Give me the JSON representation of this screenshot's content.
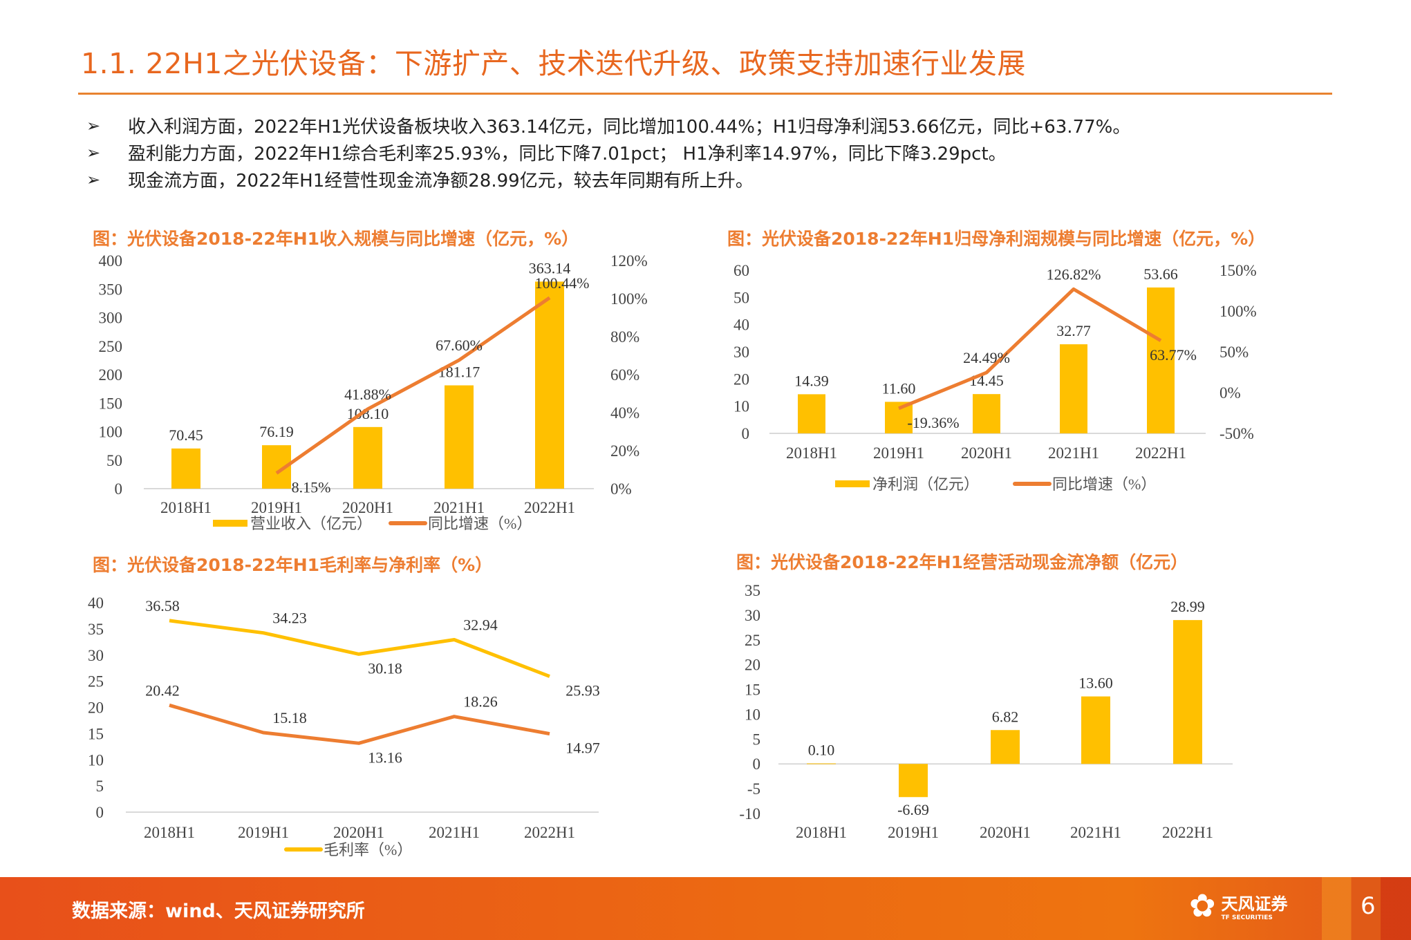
{
  "header": {
    "title": "1.1. 22H1之光伏设备：下游扩产、技术迭代升级、政策支持加速行业发展"
  },
  "bullets": {
    "marker": "➢",
    "items": [
      "收入利润方面，2022年H1光伏设备板块收入363.14亿元，同比增加100.44%；H1归母净利润53.66亿元，同比+63.77%。",
      "盈利能力方面，2022年H1综合毛利率25.93%，同比下降7.01pct； H1净利率14.97%，同比下降3.29pct。",
      "现金流方面，2022年H1经营性现金流净额28.99亿元，较去年同期有所上升。"
    ]
  },
  "colors": {
    "bar": "#FFC000",
    "line_orange": "#ED7D31",
    "line_yellow": "#FFC000",
    "title_accent": "#E8671F"
  },
  "chart_data": [
    {
      "type": "bar+line",
      "title": "图：光伏设备2018-22年H1收入规模与同比增速（亿元，%）",
      "categories": [
        "2018H1",
        "2019H1",
        "2020H1",
        "2021H1",
        "2022H1"
      ],
      "y_left": {
        "ylim": [
          0,
          400
        ],
        "ticks": [
          "0",
          "50",
          "100",
          "150",
          "200",
          "250",
          "300",
          "350",
          "400"
        ]
      },
      "y_right": {
        "ylim": [
          0,
          120
        ],
        "ticks": [
          "0%",
          "20%",
          "40%",
          "60%",
          "80%",
          "100%",
          "120%"
        ]
      },
      "series": [
        {
          "name": "营业收入（亿元）",
          "kind": "bar",
          "axis": "left",
          "values": [
            70.45,
            76.19,
            108.1,
            181.17,
            363.14
          ],
          "labels": [
            "70.45",
            "76.19",
            "108.10",
            "181.17",
            "363.14"
          ]
        },
        {
          "name": "同比增速（%）",
          "kind": "line",
          "axis": "right",
          "values": [
            null,
            8.15,
            41.88,
            67.6,
            100.44
          ],
          "labels": [
            "",
            "8.15%",
            "41.88%",
            "67.60%",
            "100.44%"
          ]
        }
      ],
      "legend": "bottom"
    },
    {
      "type": "bar+line",
      "title": "图：光伏设备2018-22年H1归母净利润规模与同比增速（亿元，%）",
      "categories": [
        "2018H1",
        "2019H1",
        "2020H1",
        "2021H1",
        "2022H1"
      ],
      "y_left": {
        "ylim": [
          0,
          60
        ],
        "ticks": [
          "0",
          "10",
          "20",
          "30",
          "40",
          "50",
          "60"
        ]
      },
      "y_right": {
        "ylim": [
          -50,
          150
        ],
        "ticks": [
          "-50%",
          "0%",
          "50%",
          "100%",
          "150%"
        ]
      },
      "series": [
        {
          "name": "净利润（亿元）",
          "kind": "bar",
          "axis": "left",
          "values": [
            14.39,
            11.6,
            14.45,
            32.77,
            53.66
          ],
          "labels": [
            "14.39",
            "11.60",
            "14.45",
            "32.77",
            "53.66"
          ]
        },
        {
          "name": "同比增速（%）",
          "kind": "line",
          "axis": "right",
          "values": [
            null,
            -19.36,
            24.49,
            126.82,
            63.77
          ],
          "labels": [
            "",
            "-19.36%",
            "24.49%",
            "126.82%",
            "63.77%"
          ]
        }
      ],
      "legend": "bottom"
    },
    {
      "type": "line",
      "title": "图：光伏设备2018-22年H1毛利率与净利率（%）",
      "categories": [
        "2018H1",
        "2019H1",
        "2020H1",
        "2021H1",
        "2022H1"
      ],
      "y_left": {
        "ylim": [
          0,
          40
        ],
        "ticks": [
          "0",
          "5",
          "10",
          "15",
          "20",
          "25",
          "30",
          "35",
          "40"
        ]
      },
      "series": [
        {
          "name": "毛利率（%）",
          "kind": "line",
          "axis": "left",
          "color": "#FFC000",
          "values": [
            36.58,
            34.23,
            30.18,
            32.94,
            25.93
          ],
          "labels": [
            "36.58",
            "34.23",
            "30.18",
            "32.94",
            "25.93"
          ]
        },
        {
          "kind": "line",
          "axis": "left",
          "color": "#ED7D31",
          "values": [
            20.42,
            15.18,
            13.16,
            18.26,
            14.97
          ],
          "labels": [
            "20.42",
            "15.18",
            "13.16",
            "18.26",
            "14.97"
          ]
        }
      ],
      "legend": "bottom"
    },
    {
      "type": "bar",
      "title": "图：光伏设备2018-22年H1经营活动现金流净额（亿元）",
      "categories": [
        "2018H1",
        "2019H1",
        "2020H1",
        "2021H1",
        "2022H1"
      ],
      "y_left": {
        "ylim": [
          -10,
          35
        ],
        "ticks": [
          "-10",
          "-5",
          "0",
          "5",
          "10",
          "15",
          "20",
          "25",
          "30",
          "35"
        ]
      },
      "series": [
        {
          "kind": "bar",
          "axis": "left",
          "values": [
            0.1,
            -6.69,
            6.82,
            13.6,
            28.99
          ],
          "labels": [
            "0.10",
            "-6.69",
            "6.82",
            "13.60",
            "28.99"
          ]
        }
      ]
    }
  ],
  "footer": {
    "source": "数据来源：wind、天风证券研究所",
    "logo_cn": "天风证券",
    "logo_en": "TF SECURITIES",
    "page_number": "6"
  }
}
